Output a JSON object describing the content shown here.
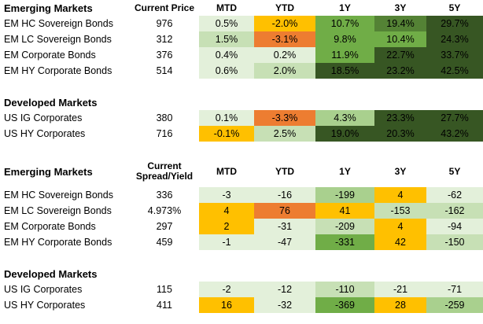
{
  "colors": {
    "g1": "#e3f0da",
    "g2": "#c7e0b5",
    "g3": "#a9d08e",
    "g4": "#70ad47",
    "g5": "#548235",
    "g6": "#375623",
    "o1": "#ffc000",
    "o2": "#ed7d31",
    "none": "#ffffff"
  },
  "top": {
    "em_title": "Emerging Markets",
    "headers": {
      "price": "Current Price",
      "mtd": "MTD",
      "ytd": "YTD",
      "y1": "1Y",
      "y3": "3Y",
      "y5": "5Y"
    },
    "em_rows": [
      {
        "name": "EM HC Sovereign Bonds",
        "price": "976",
        "mtd": "0.5%",
        "ytd": "-2.0%",
        "y1": "10.7%",
        "y3": "19.4%",
        "y5": "29.7%",
        "c": [
          "g1",
          "o1",
          "g4",
          "g5",
          "g6"
        ]
      },
      {
        "name": "EM LC Sovereign Bonds",
        "price": "312",
        "mtd": "1.5%",
        "ytd": "-3.1%",
        "y1": "9.8%",
        "y3": "10.4%",
        "y5": "24.3%",
        "c": [
          "g2",
          "o2",
          "g4",
          "g4",
          "g6"
        ]
      },
      {
        "name": "EM Corporate Bonds",
        "price": "376",
        "mtd": "0.4%",
        "ytd": "0.2%",
        "y1": "11.9%",
        "y3": "22.7%",
        "y5": "33.7%",
        "c": [
          "g1",
          "g1",
          "g4",
          "g6",
          "g6"
        ]
      },
      {
        "name": "EM HY Corporate Bonds",
        "price": "514",
        "mtd": "0.6%",
        "ytd": "2.0%",
        "y1": "18.5%",
        "y3": "23.2%",
        "y5": "42.5%",
        "c": [
          "g1",
          "g2",
          "g6",
          "g6",
          "g6"
        ]
      }
    ],
    "dm_title": "Developed Markets",
    "dm_rows": [
      {
        "name": "US IG Corporates",
        "price": "380",
        "mtd": "0.1%",
        "ytd": "-3.3%",
        "y1": "4.3%",
        "y3": "23.3%",
        "y5": "27.7%",
        "c": [
          "g1",
          "o2",
          "g3",
          "g6",
          "g6"
        ]
      },
      {
        "name": "US HY Corporates",
        "price": "716",
        "mtd": "-0.1%",
        "ytd": "2.5%",
        "y1": "19.0%",
        "y3": "20.3%",
        "y5": "43.2%",
        "c": [
          "o1",
          "g2",
          "g6",
          "g6",
          "g6"
        ]
      }
    ]
  },
  "bottom": {
    "em_title": "Emerging Markets",
    "headers": {
      "spread_line1": "Current",
      "spread_line2": "Spread/Yield",
      "mtd": "MTD",
      "ytd": "YTD",
      "y1": "1Y",
      "y3": "3Y",
      "y5": "5Y"
    },
    "em_rows": [
      {
        "name": "EM HC Sovereign Bonds",
        "spread": "336",
        "mtd": "-3",
        "ytd": "-16",
        "y1": "-199",
        "y3": "4",
        "y5": "-62",
        "c": [
          "g1",
          "g1",
          "g3",
          "o1",
          "g1"
        ]
      },
      {
        "name": "EM LC Sovereign Bonds",
        "spread": "4.973%",
        "mtd": "4",
        "ytd": "76",
        "y1": "41",
        "y3": "-153",
        "y5": "-162",
        "c": [
          "o1",
          "o2",
          "o1",
          "g2",
          "g2"
        ]
      },
      {
        "name": "EM Corporate Bonds",
        "spread": "297",
        "mtd": "2",
        "ytd": "-31",
        "y1": "-209",
        "y3": "4",
        "y5": "-94",
        "c": [
          "o1",
          "g1",
          "g2",
          "o1",
          "g1"
        ]
      },
      {
        "name": "EM HY Corporate Bonds",
        "spread": "459",
        "mtd": "-1",
        "ytd": "-47",
        "y1": "-331",
        "y3": "42",
        "y5": "-150",
        "c": [
          "g1",
          "g1",
          "g4",
          "o1",
          "g2"
        ]
      }
    ],
    "dm_title": "Developed Markets",
    "dm_rows": [
      {
        "name": "US IG Corporates",
        "spread": "115",
        "mtd": "-2",
        "ytd": "-12",
        "y1": "-110",
        "y3": "-21",
        "y5": "-71",
        "c": [
          "g1",
          "g1",
          "g2",
          "g1",
          "g1"
        ]
      },
      {
        "name": "US HY Corporates",
        "spread": "411",
        "mtd": "16",
        "ytd": "-32",
        "y1": "-369",
        "y3": "28",
        "y5": "-259",
        "c": [
          "o1",
          "g1",
          "g4",
          "o1",
          "g3"
        ]
      }
    ]
  }
}
